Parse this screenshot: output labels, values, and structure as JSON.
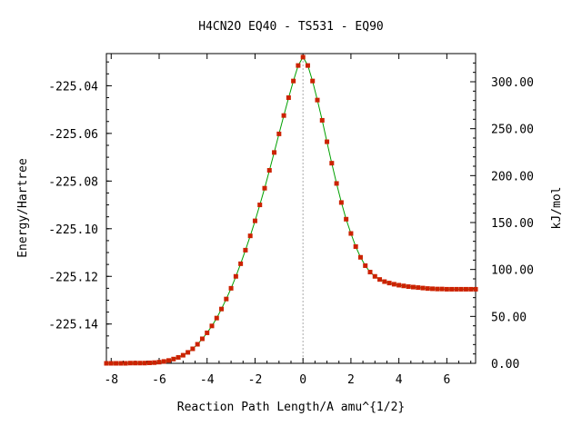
{
  "chart_data": {
    "type": "line",
    "title": "H4CN2O   EQ40 - TS531 - EQ90",
    "xlabel": "Reaction Path Length/A amu^{1/2}",
    "ylabel": "Energy/Hartree",
    "y2label": "kJ/mol",
    "xlim": [
      -8.2,
      7.2
    ],
    "ylim": [
      -225.1565,
      -225.0265
    ],
    "y2lim": [
      0,
      330
    ],
    "xticks": [
      "-8",
      "-6",
      "-4",
      "-2",
      "0",
      "2",
      "4",
      "6"
    ],
    "yticks": [
      "-225.04",
      "-225.06",
      "-225.08",
      "-225.10",
      "-225.12",
      "-225.14"
    ],
    "y2ticks": [
      "0.00",
      "50.00",
      "100.00",
      "150.00",
      "200.00",
      "250.00",
      "300.00"
    ],
    "ts_marker_x": 0,
    "grid": false,
    "colors": {
      "line": "#00a000",
      "marker": "#cc2200",
      "ts_line": "#aaaaaa"
    },
    "series": [
      {
        "x": [
          -8.2,
          -8.0,
          -7.8,
          -7.6,
          -7.4,
          -7.2,
          -7.0,
          -6.8,
          -6.6,
          -6.4,
          -6.2,
          -6.0,
          -5.8,
          -5.6,
          -5.4,
          -5.2,
          -5.0,
          -4.8,
          -4.6,
          -4.4,
          -4.2,
          -4.0,
          -3.8,
          -3.6,
          -3.4,
          -3.2,
          -3.0,
          -2.8,
          -2.6,
          -2.4,
          -2.2,
          -2.0,
          -1.8,
          -1.6,
          -1.4,
          -1.2,
          -1.0,
          -0.8,
          -0.6,
          -0.4,
          -0.2,
          0.0,
          0.2,
          0.4,
          0.6,
          0.8,
          1.0,
          1.2,
          1.4,
          1.6,
          1.8,
          2.0,
          2.2,
          2.4,
          2.6,
          2.8,
          3.0,
          3.2,
          3.4,
          3.6,
          3.8,
          4.0,
          4.2,
          4.4,
          4.6,
          4.8,
          5.0,
          5.2,
          5.4,
          5.6,
          5.8,
          6.0,
          6.2,
          6.4,
          6.6,
          6.8,
          7.0,
          7.2
        ],
        "y": [
          -225.1565,
          -225.1565,
          -225.1565,
          -225.1565,
          -225.1565,
          -225.1564,
          -225.1564,
          -225.1564,
          -225.1564,
          -225.1563,
          -225.1562,
          -225.156,
          -225.1557,
          -225.1553,
          -225.1547,
          -225.154,
          -225.1531,
          -225.1519,
          -225.1504,
          -225.1485,
          -225.1462,
          -225.1437,
          -225.1408,
          -225.1375,
          -225.1337,
          -225.1295,
          -225.125,
          -225.12,
          -225.1147,
          -225.109,
          -225.103,
          -225.0967,
          -225.09,
          -225.083,
          -225.0755,
          -225.068,
          -225.0602,
          -225.0525,
          -225.045,
          -225.038,
          -225.0315,
          -225.028,
          -225.0315,
          -225.038,
          -225.046,
          -225.0545,
          -225.0635,
          -225.0725,
          -225.081,
          -225.089,
          -225.096,
          -225.102,
          -225.1075,
          -225.112,
          -225.1155,
          -225.1182,
          -225.12,
          -225.1213,
          -225.1222,
          -225.1228,
          -225.1233,
          -225.1237,
          -225.124,
          -225.1243,
          -225.1245,
          -225.1247,
          -225.1249,
          -225.1251,
          -225.1252,
          -225.1253,
          -225.1253,
          -225.1254,
          -225.1254,
          -225.1254,
          -225.1254,
          -225.1254,
          -225.1254,
          -225.1254
        ]
      }
    ]
  }
}
